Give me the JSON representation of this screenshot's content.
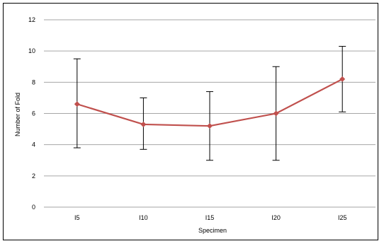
{
  "chart_data": {
    "type": "line",
    "categories": [
      "I5",
      "I10",
      "I15",
      "I20",
      "I25"
    ],
    "series": [
      {
        "values": [
          6.6,
          5.3,
          5.2,
          6.0,
          8.2
        ],
        "error_low": [
          3.8,
          3.7,
          3.0,
          3.0,
          6.1
        ],
        "error_high": [
          9.5,
          7.0,
          7.4,
          9.0,
          10.3
        ]
      }
    ],
    "xlabel": "Specimen",
    "ylabel": "Number of Fold",
    "ylim": [
      0,
      12
    ],
    "yticks": [
      "0",
      "2",
      "4",
      "6",
      "8",
      "10",
      "12"
    ],
    "grid": true,
    "colors": {
      "series": "#c0504d",
      "grid": "#a6a6a6",
      "error_bar": "#000000"
    }
  }
}
